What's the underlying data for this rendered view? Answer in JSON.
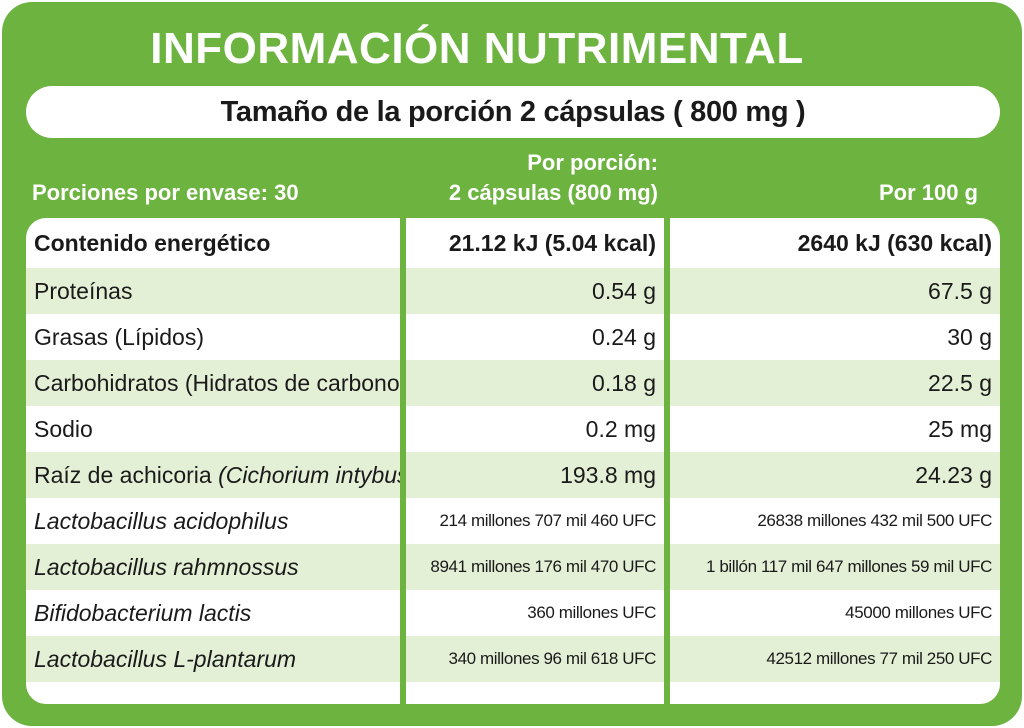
{
  "title": "INFORMACIÓN NUTRIMENTAL",
  "serving_size": "Tamaño de la porción 2 cápsulas ( 800 mg )",
  "headers": {
    "servings_per_container": "Porciones por envase: 30",
    "per_portion_line1": "Por porción:",
    "per_portion_line2": "2 cápsulas  (800 mg)",
    "per_100g": "Por 100 g"
  },
  "rows": [
    {
      "name": "Contenido energético",
      "per_portion": "21.12 kJ (5.04 kcal)",
      "per_100g": "2640 kJ (630 kcal)"
    },
    {
      "name": "Proteínas",
      "per_portion": "0.54 g",
      "per_100g": "67.5 g"
    },
    {
      "name": "Grasas (Lípidos)",
      "per_portion": "0.24 g",
      "per_100g": "30 g"
    },
    {
      "name": "Carbohidratos (Hidratos de carbono)",
      "per_portion": "0.18 g",
      "per_100g": "22.5 g"
    },
    {
      "name": "Sodio",
      "per_portion": "0.2 mg",
      "per_100g": "25 mg"
    },
    {
      "name_plain": "Raíz de achicoria ",
      "name_italic": "(Cichorium intybus)",
      "per_portion": "193.8 mg",
      "per_100g": "24.23 g"
    },
    {
      "name": "Lactobacillus acidophilus",
      "per_portion": "214 millones 707 mil 460 UFC",
      "per_100g": "26838 millones 432 mil 500 UFC"
    },
    {
      "name": "Lactobacillus rahmnossus",
      "per_portion": "8941 millones 176 mil 470 UFC",
      "per_100g": "1 billón 117 mil 647 millones 59 mil UFC"
    },
    {
      "name": "Bifidobacterium lactis",
      "per_portion": "360 millones UFC",
      "per_100g": "45000 millones UFC"
    },
    {
      "name": "Lactobacillus L-plantarum",
      "per_portion": "340 millones 96 mil 618 UFC",
      "per_100g": "42512 millones 77 mil 250 UFC"
    }
  ],
  "colors": {
    "brand_green": "#6db33f",
    "row_shade": "#e4f0d6"
  }
}
